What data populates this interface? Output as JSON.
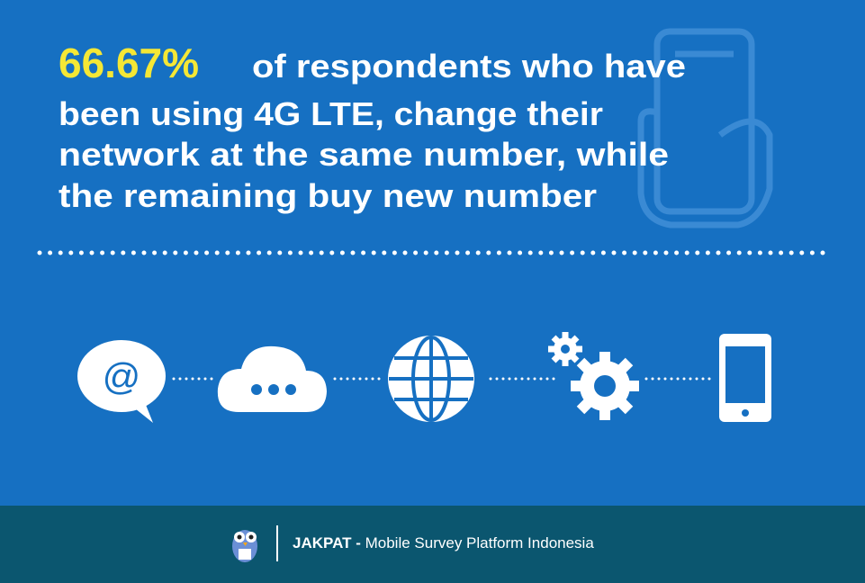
{
  "headline": {
    "highlight": "66.67%",
    "lines": [
      "of respondents who have",
      "been using 4G LTE, change their",
      "network at the same number, while",
      "the remaining buy new number"
    ]
  },
  "icons": {
    "email_symbol": "@"
  },
  "footer": {
    "brand": "JAKPAT -",
    "tagline": "Mobile Survey Platform Indonesia"
  }
}
